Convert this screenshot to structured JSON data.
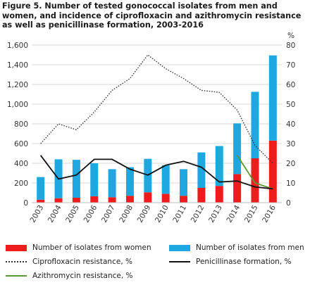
{
  "figure_title": "Figure 5. Number of tested gonococcal isolates from men and women, and incidence of ciprofloxacin and azithromycin resistance as well as penicillinase formation, 2003-2016",
  "colors": {
    "women": "#ee1c1c",
    "men": "#1ea7e1",
    "cipro": "#333333",
    "penicillinase": "#111111",
    "azithro": "#5a9a32",
    "grid": "#d9d9d9"
  },
  "chart_data": {
    "type": "bar",
    "categories": [
      "2003",
      "2004",
      "2005",
      "2006",
      "2007",
      "2008",
      "2009",
      "2010",
      "2011",
      "2012",
      "2013",
      "2014",
      "2015",
      "2016"
    ],
    "y_left": {
      "min": 0,
      "max": 1600,
      "step": 200,
      "ticks": [
        "0",
        "200",
        "400",
        "600",
        "800",
        "1,000",
        "1,200",
        "1,400",
        "1,600"
      ]
    },
    "y_right": {
      "label": "%",
      "min": 0,
      "max": 80,
      "step": 10,
      "ticks": [
        "0",
        "10",
        "20",
        "30",
        "40",
        "50",
        "60",
        "70",
        "80"
      ]
    },
    "series": [
      {
        "name": "Number of isolates from women",
        "kind": "bar",
        "axis": "left",
        "values": [
          30,
          45,
          50,
          65,
          55,
          70,
          105,
          90,
          70,
          150,
          170,
          290,
          450,
          630
        ]
      },
      {
        "name": "Number of isolates from men",
        "kind": "bar-stacked",
        "axis": "left",
        "values": [
          230,
          395,
          385,
          335,
          285,
          290,
          340,
          290,
          270,
          360,
          405,
          515,
          675,
          865
        ]
      },
      {
        "name": "Ciprofloxacin resistance, %",
        "kind": "line-dotted",
        "axis": "right",
        "values": [
          30,
          40,
          37,
          46,
          57,
          63,
          75,
          68,
          63,
          57,
          56,
          47,
          29,
          20
        ]
      },
      {
        "name": "Penicillinase formation, %",
        "kind": "line",
        "axis": "right",
        "values": [
          24,
          12,
          14,
          22,
          22,
          17,
          14,
          19,
          21,
          18,
          10.5,
          11,
          8,
          7
        ]
      },
      {
        "name": "Azithromycin resistance, %",
        "kind": "line",
        "axis": "right",
        "values": [
          null,
          null,
          null,
          null,
          null,
          null,
          null,
          null,
          null,
          null,
          null,
          24,
          10,
          7
        ]
      }
    ],
    "legend": {
      "women": "Number of isolates from women",
      "men": "Number of isolates from men",
      "cipro": "Ciprofloxacin resistance, %",
      "penicillinase": "Penicillinase formation, %",
      "azithro": "Azithromycin resistance, %"
    }
  }
}
